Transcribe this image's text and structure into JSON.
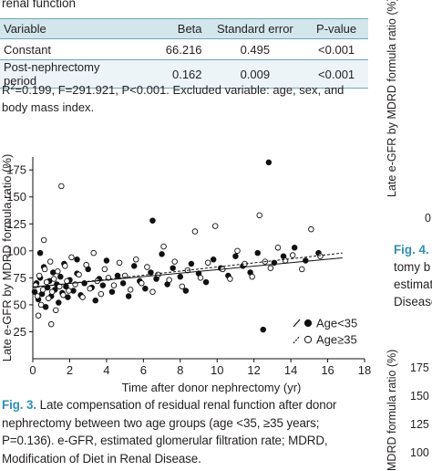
{
  "top_caption": "renal function",
  "table": {
    "headers": [
      "Variable",
      "Beta",
      "Standard error",
      "P-value"
    ],
    "rows": [
      [
        "Constant",
        "66.216",
        "0.495",
        "<0.001"
      ],
      [
        "Post-nephrectomy period",
        "0.162",
        "0.009",
        "<0.001"
      ]
    ]
  },
  "footnote": {
    "r": "R",
    "sup": "2",
    "rest": "=0.199, F=291.921, P<0.001. Excluded variable: age, sex, and body mass index."
  },
  "chart_data": {
    "type": "scatter",
    "xlabel": "Time after donor nephrectomy (yr)",
    "ylabel": "Late e-GFR by MDRD formula ratio (%)",
    "xlim": [
      0,
      18
    ],
    "ylim": [
      0,
      187
    ],
    "xticks": [
      0,
      2,
      4,
      6,
      8,
      10,
      12,
      14,
      16,
      18
    ],
    "yticks": [
      25,
      50,
      75,
      100,
      125,
      150,
      175
    ],
    "legend_position": "bottom-right",
    "series": [
      {
        "name": "Age<35",
        "marker": "filled-circle",
        "color": "#111111",
        "trend": {
          "style": "solid",
          "x": [
            0,
            16.8
          ],
          "y": [
            66.5,
            93.5
          ]
        },
        "points": [
          [
            0.1,
            62
          ],
          [
            0.2,
            70
          ],
          [
            0.3,
            55
          ],
          [
            0.4,
            75
          ],
          [
            0.5,
            60
          ],
          [
            0.6,
            85
          ],
          [
            0.7,
            48
          ],
          [
            0.8,
            66
          ],
          [
            0.9,
            72
          ],
          [
            1.0,
            58
          ],
          [
            1.1,
            80
          ],
          [
            1.2,
            64
          ],
          [
            1.3,
            69
          ],
          [
            1.4,
            52
          ],
          [
            1.5,
            76
          ],
          [
            1.6,
            61
          ],
          [
            1.7,
            88
          ],
          [
            1.8,
            67
          ],
          [
            1.9,
            57
          ],
          [
            2.0,
            73
          ],
          [
            2.2,
            63
          ],
          [
            2.4,
            79
          ],
          [
            2.6,
            59
          ],
          [
            2.8,
            70
          ],
          [
            3.0,
            83
          ],
          [
            3.2,
            66
          ],
          [
            3.4,
            54
          ],
          [
            3.6,
            74
          ],
          [
            3.8,
            68
          ],
          [
            4.0,
            91
          ],
          [
            4.3,
            62
          ],
          [
            4.6,
            77
          ],
          [
            4.9,
            70
          ],
          [
            5.2,
            58
          ],
          [
            5.5,
            86
          ],
          [
            5.8,
            72
          ],
          [
            6.1,
            65
          ],
          [
            6.4,
            80
          ],
          [
            6.7,
            74
          ],
          [
            7.0,
            97
          ],
          [
            7.3,
            69
          ],
          [
            7.6,
            84
          ],
          [
            8.0,
            76
          ],
          [
            8.3,
            63
          ],
          [
            8.6,
            88
          ],
          [
            9.0,
            79
          ],
          [
            9.4,
            71
          ],
          [
            9.8,
            92
          ],
          [
            10.2,
            84
          ],
          [
            10.6,
            77
          ],
          [
            11.0,
            95
          ],
          [
            11.4,
            86
          ],
          [
            11.8,
            80
          ],
          [
            12.2,
            98
          ],
          [
            12.5,
            27
          ],
          [
            12.8,
            182
          ],
          [
            13.1,
            89
          ],
          [
            13.6,
            95
          ],
          [
            14.2,
            103
          ],
          [
            14.8,
            91
          ],
          [
            15.5,
            98
          ],
          [
            6.5,
            128
          ],
          [
            2.4,
            92
          ],
          [
            0.4,
            98
          ]
        ]
      },
      {
        "name": "Age≥35",
        "marker": "open-circle",
        "color": "#111111",
        "trend": {
          "style": "dashed",
          "x": [
            0,
            16.8
          ],
          "y": [
            66,
            98
          ]
        },
        "points": [
          [
            0.15,
            68
          ],
          [
            0.25,
            58
          ],
          [
            0.35,
            77
          ],
          [
            0.45,
            50
          ],
          [
            0.55,
            64
          ],
          [
            0.65,
            83
          ],
          [
            0.75,
            71
          ],
          [
            0.85,
            56
          ],
          [
            0.95,
            90
          ],
          [
            1.05,
            62
          ],
          [
            1.15,
            74
          ],
          [
            1.25,
            45
          ],
          [
            1.35,
            81
          ],
          [
            1.45,
            67
          ],
          [
            1.55,
            160
          ],
          [
            1.65,
            59
          ],
          [
            1.75,
            86
          ],
          [
            1.85,
            72
          ],
          [
            1.95,
            63
          ],
          [
            2.1,
            94
          ],
          [
            2.3,
            69
          ],
          [
            2.5,
            78
          ],
          [
            2.7,
            57
          ],
          [
            2.9,
            87
          ],
          [
            3.1,
            65
          ],
          [
            3.3,
            98
          ],
          [
            3.5,
            72
          ],
          [
            3.7,
            60
          ],
          [
            3.9,
            83
          ],
          [
            4.1,
            75
          ],
          [
            4.4,
            68
          ],
          [
            4.7,
            89
          ],
          [
            5.0,
            77
          ],
          [
            5.3,
            64
          ],
          [
            5.6,
            92
          ],
          [
            5.9,
            70
          ],
          [
            6.2,
            85
          ],
          [
            6.5,
            62
          ],
          [
            6.8,
            78
          ],
          [
            7.1,
            104
          ],
          [
            7.4,
            73
          ],
          [
            7.7,
            90
          ],
          [
            8.1,
            67
          ],
          [
            8.4,
            82
          ],
          [
            8.8,
            118
          ],
          [
            9.1,
            75
          ],
          [
            9.5,
            89
          ],
          [
            9.9,
            123
          ],
          [
            10.3,
            83
          ],
          [
            10.7,
            74
          ],
          [
            11.1,
            100
          ],
          [
            11.5,
            88
          ],
          [
            11.9,
            76
          ],
          [
            12.3,
            133
          ],
          [
            12.6,
            90
          ],
          [
            12.9,
            84
          ],
          [
            13.3,
            103
          ],
          [
            13.7,
            91
          ],
          [
            14.1,
            96
          ],
          [
            14.6,
            83
          ],
          [
            15.1,
            120
          ],
          [
            15.6,
            95
          ],
          [
            0.3,
            40
          ],
          [
            1.0,
            32
          ],
          [
            0.6,
            110
          ]
        ]
      }
    ]
  },
  "figure_caption": {
    "label": "Fig. 3.",
    "text": "Late compensation of residual renal function after donor nephrectomy between two age groups (age <35, ≥35 years; P=0.136). e-GFR, estimated glomerular filtration rate; MDRD, Modification of Diet in Renal Disease."
  },
  "right_panel": {
    "ylabel_top": "Late e-GFR by MDRD formula ratio (%)",
    "tick_top": "0",
    "fig4_label": "Fig. 4.",
    "text_lines": [
      "tomy b",
      "estimat",
      "Disease"
    ],
    "ylabel_bottom": "MDRD formula ratio (%)",
    "bottom_ticks": [
      "175",
      "150",
      "125",
      "100"
    ]
  }
}
